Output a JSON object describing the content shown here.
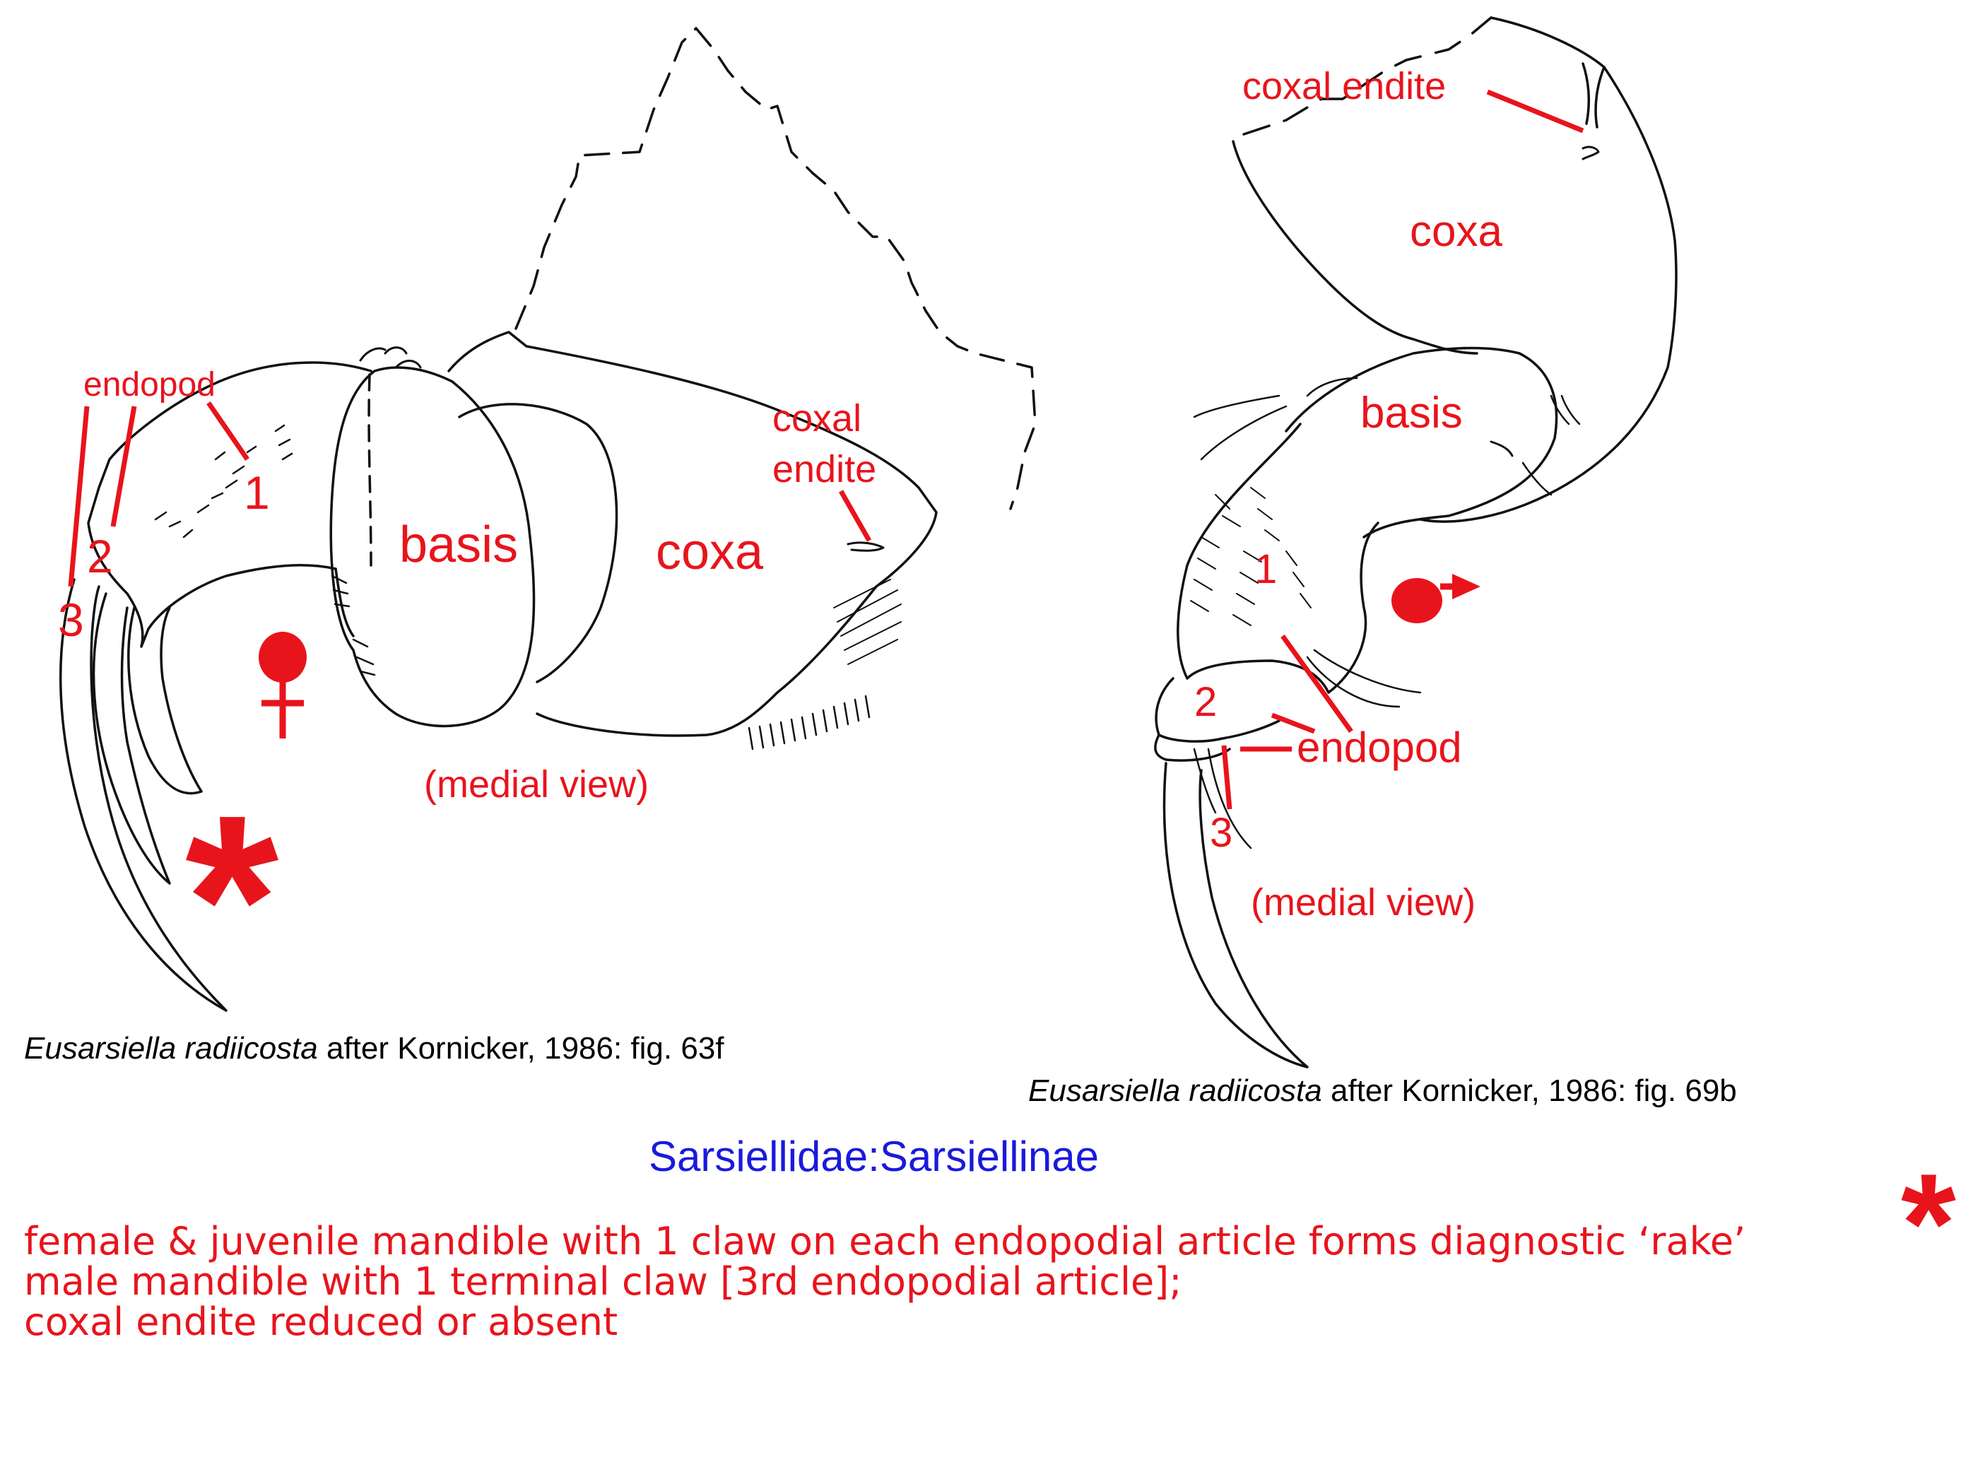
{
  "colors": {
    "annotation": "#e8141c",
    "drawing": "#111111",
    "family_title": "#1a1adc",
    "caption": "#000000"
  },
  "left_figure": {
    "labels": {
      "endopod": "endopod",
      "art1": "1",
      "art2": "2",
      "art3": "3",
      "basis": "basis",
      "coxa": "coxa",
      "coxal_line1": "coxal",
      "coxal_line2": "endite",
      "view": "(medial view)"
    },
    "sex_symbol": "female-symbol",
    "asterisk": "*",
    "caption": {
      "species": "Eusarsiella radiicosta",
      "rest": " after Kornicker, 1986: fig. 63f"
    }
  },
  "right_figure": {
    "labels": {
      "coxal_endite": "coxal endite",
      "coxa": "coxa",
      "basis": "basis",
      "art1": "1",
      "art2": "2",
      "art3": "3",
      "endopod": "endopod",
      "view": "(medial view)"
    },
    "sex_symbol": "male-symbol",
    "caption": {
      "species": "Eusarsiella radiicosta",
      "rest": " after Kornicker, 1986: fig. 69b"
    }
  },
  "family_title": "Sarsiellidae:Sarsiellinae",
  "asterisk_note": "*",
  "notes": [
    "female & juvenile mandible with 1 claw on each endopodial article forms diagnostic ‘rake’",
    "male mandible with 1 terminal claw [3rd endopodial article];",
    "coxal endite reduced or absent"
  ]
}
